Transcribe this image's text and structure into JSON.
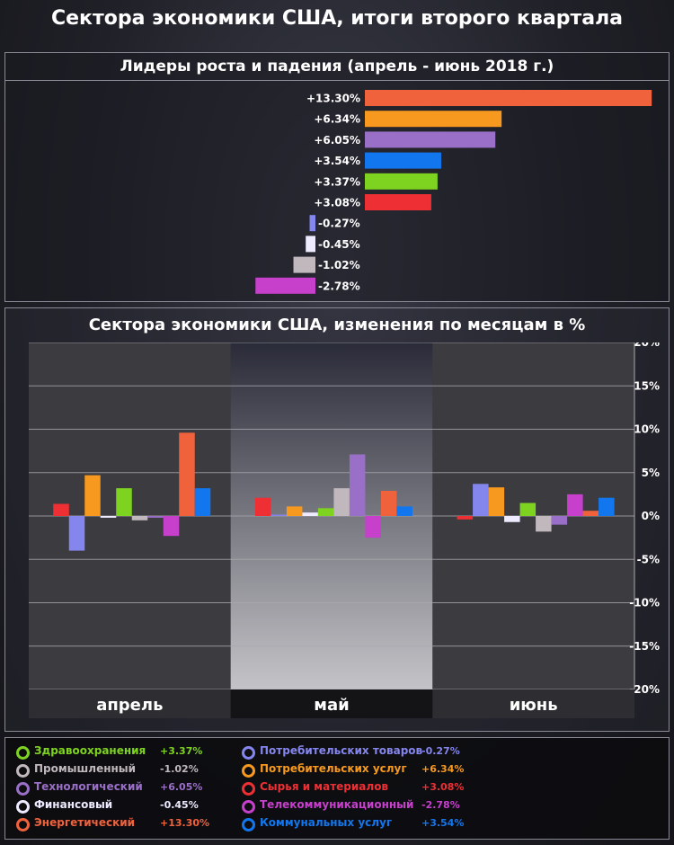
{
  "page_title": "Сектора экономики США, итоги второго квартала",
  "chart_data": [
    {
      "type": "bar",
      "orientation": "horizontal",
      "title": "Лидеры роста и падения (апрель - июнь 2018 г.)",
      "labels": [
        "+13.30%",
        "+6.34%",
        "+6.05%",
        "+3.54%",
        "+3.37%",
        "+3.08%",
        "-0.27%",
        "-0.45%",
        "-1.02%",
        "-2.78%"
      ],
      "values": [
        13.3,
        6.34,
        6.05,
        3.54,
        3.37,
        3.08,
        -0.27,
        -0.45,
        -1.02,
        -2.78
      ],
      "colors": [
        "#f0623c",
        "#f7991e",
        "#9a6fc7",
        "#1277ee",
        "#7ed321",
        "#ee2f33",
        "#8585ee",
        "#eeeaff",
        "#c0b8bc",
        "#c640cc"
      ]
    },
    {
      "type": "bar",
      "title": "Сектора экономики США, изменения по месяцам в %",
      "categories": [
        "апрель",
        "май",
        "июнь"
      ],
      "ylim": [
        -20,
        20
      ],
      "yticks": [
        20,
        15,
        10,
        5,
        0,
        -5,
        -10,
        -15,
        -20
      ],
      "ytick_labels": [
        "20%",
        "15%",
        "10%",
        "5%",
        "0%",
        "-5%",
        "-10%",
        "-15%",
        "-20%"
      ],
      "grid": true,
      "series": [
        {
          "name": "Сырья и материалов",
          "color": "#ee2f33",
          "values": [
            1.4,
            2.1,
            -0.4
          ]
        },
        {
          "name": "Потребительских товаров",
          "color": "#8585ee",
          "values": [
            -4.0,
            0.1,
            3.7
          ]
        },
        {
          "name": "Потребительских услуг",
          "color": "#f7991e",
          "values": [
            4.7,
            1.1,
            3.3
          ]
        },
        {
          "name": "Финансовый",
          "color": "#eeeaff",
          "values": [
            -0.2,
            0.4,
            -0.7
          ]
        },
        {
          "name": "Здравоохранения",
          "color": "#7ed321",
          "values": [
            3.2,
            0.9,
            1.5
          ]
        },
        {
          "name": "Промышленный",
          "color": "#c0b8bc",
          "values": [
            -0.5,
            3.2,
            -1.8
          ]
        },
        {
          "name": "Технологический",
          "color": "#9a6fc7",
          "values": [
            -0.2,
            7.1,
            -1.0
          ]
        },
        {
          "name": "Телекоммуникационный",
          "color": "#c640cc",
          "values": [
            -2.3,
            -2.5,
            2.5
          ]
        },
        {
          "name": "Энергетический",
          "color": "#f0623c",
          "values": [
            9.6,
            2.9,
            0.6
          ]
        },
        {
          "name": "Коммунальных услуг",
          "color": "#1277ee",
          "values": [
            3.2,
            1.1,
            2.1
          ]
        }
      ]
    }
  ],
  "legend": [
    {
      "name": "Здравоохранения",
      "value": "+3.37%",
      "color": "#7ed321"
    },
    {
      "name": "Промышленный",
      "value": "-1.02%",
      "color": "#c0b8bc"
    },
    {
      "name": "Технологический",
      "value": "+6.05%",
      "color": "#9a6fc7"
    },
    {
      "name": "Финансовый",
      "value": "-0.45%",
      "color": "#eeeaff"
    },
    {
      "name": "Энергетический",
      "value": "+13.30%",
      "color": "#f0623c"
    },
    {
      "name": "Потребительских товаров",
      "value": "-0.27%",
      "color": "#8585ee"
    },
    {
      "name": "Потребительских услуг",
      "value": "+6.34%",
      "color": "#f7991e"
    },
    {
      "name": "Сырья и материалов",
      "value": "+3.08%",
      "color": "#ee2f33"
    },
    {
      "name": "Телекоммуникационный",
      "value": "-2.78%",
      "color": "#c640cc"
    },
    {
      "name": "Коммунальных услуг",
      "value": "+3.54%",
      "color": "#1277ee"
    }
  ]
}
